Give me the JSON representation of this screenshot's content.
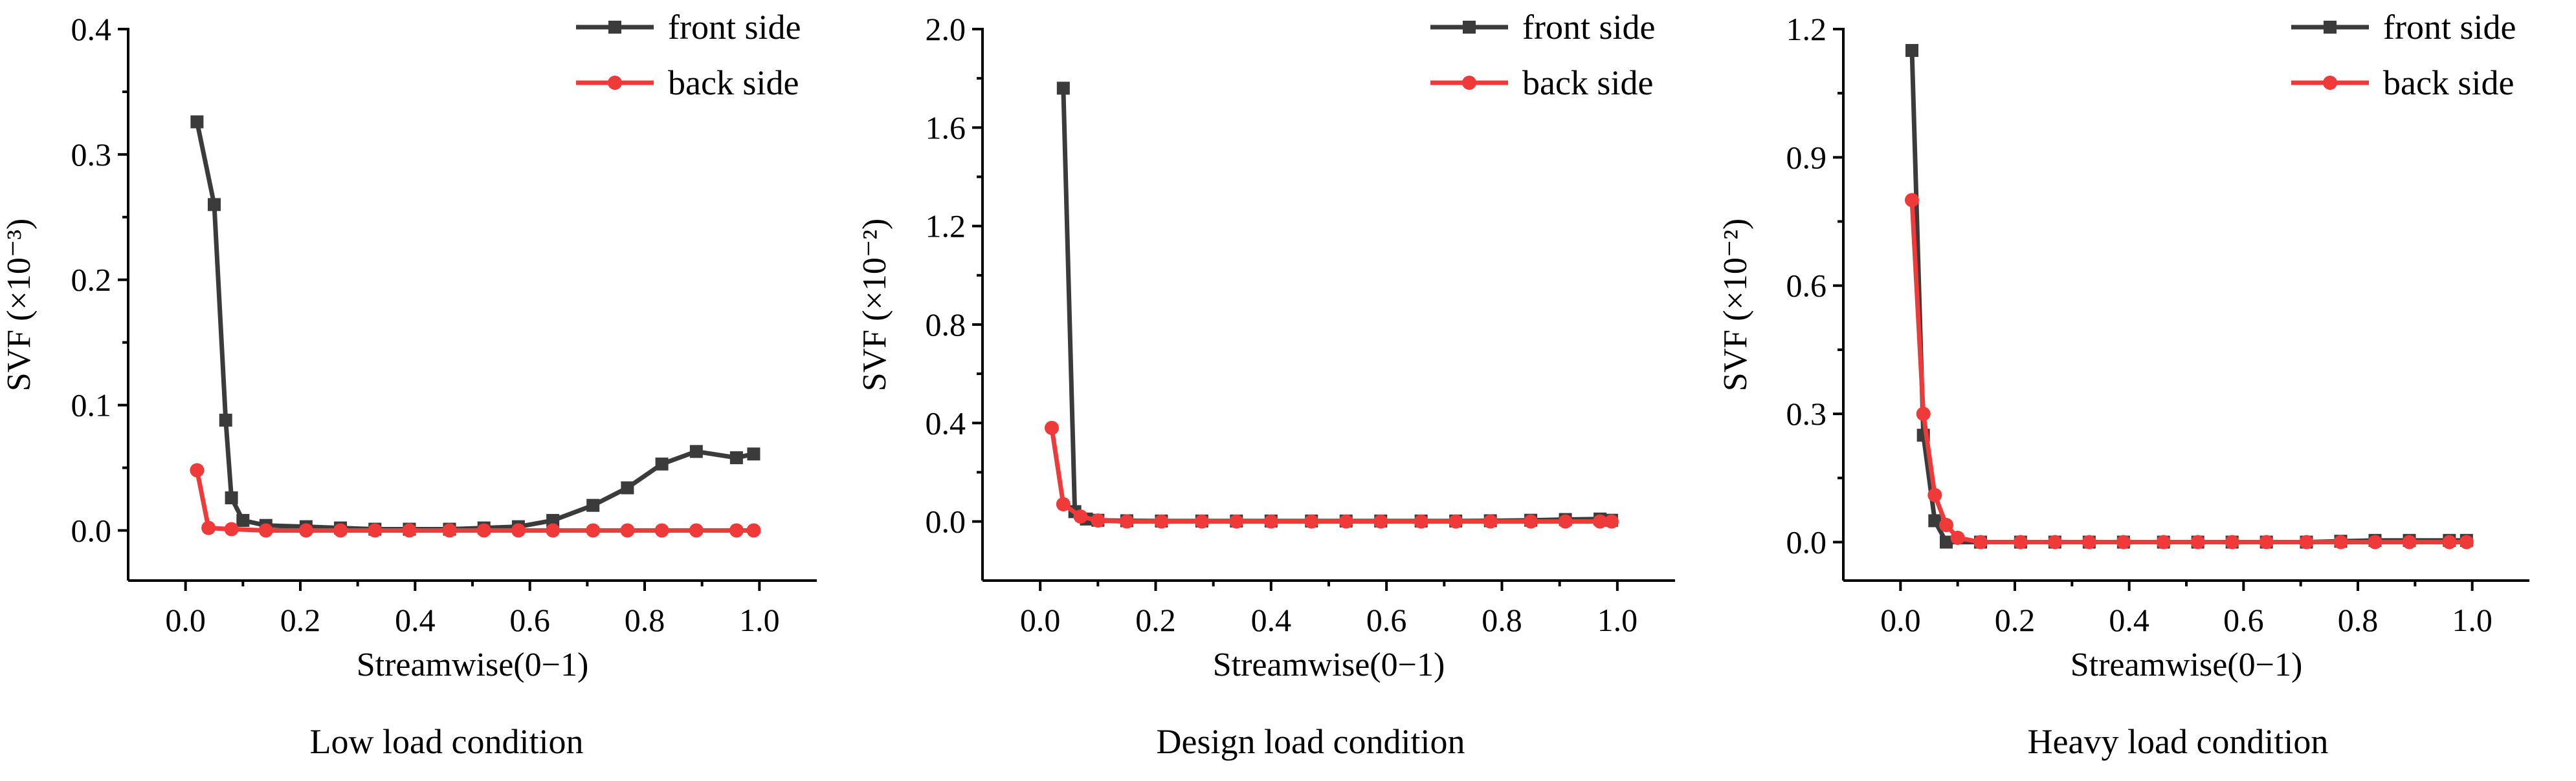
{
  "colors": {
    "front": "#3b3b3b",
    "back": "#f03a3a",
    "axis": "#000000"
  },
  "legend": {
    "front_label": "front side",
    "back_label": "back side"
  },
  "chart_data": [
    {
      "type": "line",
      "title": "",
      "caption": "Low load condition",
      "xlabel": "Streamwise(0−1)",
      "ylabel": "SVF (×10⁻³)",
      "xlim": [
        -0.1,
        1.1
      ],
      "ylim": [
        -0.04,
        0.4
      ],
      "xticks": [
        0.0,
        0.2,
        0.4,
        0.6,
        0.8,
        1.0
      ],
      "xtick_labels": [
        "0.0",
        "0.2",
        "0.4",
        "0.6",
        "0.8",
        "1.0"
      ],
      "yticks": [
        0.0,
        0.1,
        0.2,
        0.3,
        0.4
      ],
      "ytick_labels": [
        "0.0",
        "0.1",
        "0.2",
        "0.3",
        "0.4"
      ],
      "legend_position": "top-right",
      "series": [
        {
          "name": "front side",
          "marker": "square",
          "x": [
            0.02,
            0.05,
            0.07,
            0.08,
            0.1,
            0.14,
            0.21,
            0.27,
            0.33,
            0.39,
            0.46,
            0.52,
            0.58,
            0.64,
            0.71,
            0.77,
            0.83,
            0.89,
            0.96,
            0.99
          ],
          "y": [
            0.326,
            0.26,
            0.088,
            0.026,
            0.008,
            0.004,
            0.003,
            0.002,
            0.001,
            0.001,
            0.001,
            0.002,
            0.003,
            0.008,
            0.02,
            0.034,
            0.053,
            0.063,
            0.058,
            0.061
          ]
        },
        {
          "name": "back side",
          "marker": "circle",
          "x": [
            0.02,
            0.04,
            0.08,
            0.14,
            0.21,
            0.27,
            0.33,
            0.39,
            0.46,
            0.52,
            0.58,
            0.64,
            0.71,
            0.77,
            0.83,
            0.89,
            0.96,
            0.99
          ],
          "y": [
            0.048,
            0.002,
            0.001,
            0.0,
            0.0,
            0.0,
            0.0,
            0.0,
            0.0,
            0.0,
            0.0,
            0.0,
            0.0,
            0.0,
            0.0,
            0.0,
            0.0,
            0.0
          ]
        }
      ]
    },
    {
      "type": "line",
      "title": "",
      "caption": "Design load condition",
      "xlabel": "Streamwise(0−1)",
      "ylabel": "SVF (×10⁻²)",
      "xlim": [
        -0.1,
        1.1
      ],
      "ylim": [
        -0.24,
        2.0
      ],
      "xticks": [
        0.0,
        0.2,
        0.4,
        0.6,
        0.8,
        1.0
      ],
      "xtick_labels": [
        "0.0",
        "0.2",
        "0.4",
        "0.6",
        "0.8",
        "1.0"
      ],
      "yticks": [
        0.0,
        0.4,
        0.8,
        1.2,
        1.6,
        2.0
      ],
      "ytick_labels": [
        "0.0",
        "0.4",
        "0.8",
        "1.2",
        "1.6",
        "2.0"
      ],
      "legend_position": "top-right",
      "series": [
        {
          "name": "front side",
          "marker": "square",
          "x": [
            0.04,
            0.06,
            0.08,
            0.1,
            0.15,
            0.21,
            0.28,
            0.34,
            0.4,
            0.47,
            0.53,
            0.59,
            0.66,
            0.72,
            0.78,
            0.85,
            0.91,
            0.97,
            0.99
          ],
          "y": [
            1.76,
            0.04,
            0.01,
            0.005,
            0.003,
            0.002,
            0.002,
            0.002,
            0.002,
            0.002,
            0.002,
            0.002,
            0.002,
            0.002,
            0.003,
            0.005,
            0.008,
            0.01,
            0.005
          ]
        },
        {
          "name": "back side",
          "marker": "circle",
          "x": [
            0.02,
            0.04,
            0.07,
            0.1,
            0.15,
            0.21,
            0.28,
            0.34,
            0.4,
            0.47,
            0.53,
            0.59,
            0.66,
            0.72,
            0.78,
            0.85,
            0.91,
            0.97,
            0.99
          ],
          "y": [
            0.38,
            0.07,
            0.02,
            0.004,
            0.0,
            0.0,
            0.0,
            0.0,
            0.0,
            0.0,
            0.0,
            0.0,
            0.0,
            0.0,
            0.0,
            0.0,
            0.0,
            0.0,
            0.0
          ]
        }
      ]
    },
    {
      "type": "line",
      "title": "",
      "caption": "Heavy load condition",
      "xlabel": "Streamwise(0−1)",
      "ylabel": "SVF (×10⁻²)",
      "xlim": [
        -0.1,
        1.1
      ],
      "ylim": [
        -0.09,
        1.2
      ],
      "xticks": [
        0.0,
        0.2,
        0.4,
        0.6,
        0.8,
        1.0
      ],
      "xtick_labels": [
        "0.0",
        "0.2",
        "0.4",
        "0.6",
        "0.8",
        "1.0"
      ],
      "yticks": [
        0.0,
        0.3,
        0.6,
        0.9,
        1.2
      ],
      "ytick_labels": [
        "0.0",
        "0.3",
        "0.6",
        "0.9",
        "1.2"
      ],
      "legend_position": "top-right",
      "series": [
        {
          "name": "front side",
          "marker": "square",
          "x": [
            0.02,
            0.04,
            0.06,
            0.08,
            0.14,
            0.21,
            0.27,
            0.33,
            0.39,
            0.46,
            0.52,
            0.58,
            0.64,
            0.71,
            0.77,
            0.83,
            0.89,
            0.96,
            0.99
          ],
          "y": [
            1.15,
            0.25,
            0.05,
            0.0,
            0.0,
            0.0,
            0.0,
            0.0,
            0.0,
            0.0,
            0.0,
            0.0,
            0.0,
            0.0,
            0.002,
            0.004,
            0.004,
            0.004,
            0.004
          ]
        },
        {
          "name": "back side",
          "marker": "circle",
          "x": [
            0.02,
            0.04,
            0.06,
            0.08,
            0.1,
            0.14,
            0.21,
            0.27,
            0.33,
            0.39,
            0.46,
            0.52,
            0.58,
            0.64,
            0.71,
            0.77,
            0.83,
            0.89,
            0.96,
            0.99
          ],
          "y": [
            0.8,
            0.3,
            0.11,
            0.04,
            0.01,
            0.0,
            0.0,
            0.0,
            0.0,
            0.0,
            0.0,
            0.0,
            0.0,
            0.0,
            0.0,
            0.0,
            0.0,
            0.0,
            0.0,
            0.0
          ]
        }
      ]
    }
  ]
}
